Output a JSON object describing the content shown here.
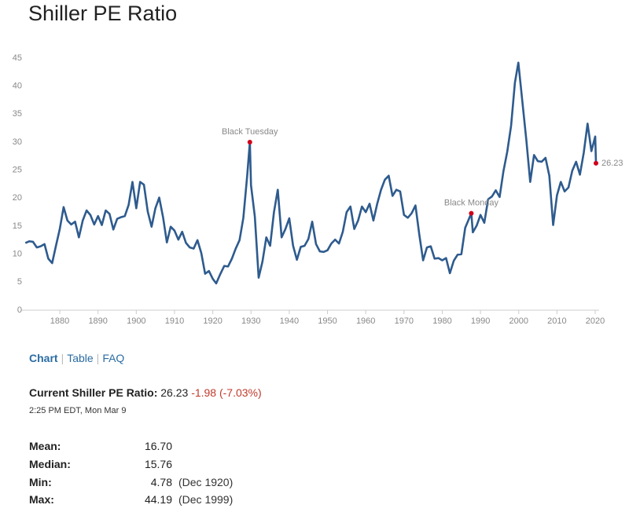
{
  "page": {
    "title": "Shiller PE Ratio",
    "tabs": [
      "Chart",
      "Table",
      "FAQ"
    ],
    "current": {
      "label": "Current Shiller PE Ratio:",
      "value": "26.23",
      "change": "-1.98 (-7.03%)",
      "time": "2:25 PM EDT, Mon Mar 9"
    },
    "stats": [
      {
        "label": "Mean:",
        "value": "16.70"
      },
      {
        "label": "Median:",
        "value": "15.76"
      },
      {
        "label": "Min:",
        "value": "4.78",
        "date": "(Dec 1920)"
      },
      {
        "label": "Max:",
        "value": "44.19",
        "date": "(Dec 1999)"
      }
    ]
  },
  "chart_data": {
    "type": "line",
    "color": "#2e5b8e",
    "x": [
      1871,
      1872,
      1873,
      1874,
      1875,
      1876,
      1877,
      1878,
      1879,
      1880,
      1881,
      1882,
      1883,
      1884,
      1885,
      1886,
      1887,
      1888,
      1889,
      1890,
      1891,
      1892,
      1893,
      1894,
      1895,
      1896,
      1897,
      1898,
      1899,
      1900,
      1901,
      1902,
      1903,
      1904,
      1905,
      1906,
      1907,
      1908,
      1909,
      1910,
      1911,
      1912,
      1913,
      1914,
      1915,
      1916,
      1917,
      1918,
      1919,
      1920,
      1920.9,
      1922,
      1923,
      1924,
      1925,
      1926,
      1927,
      1928,
      1929,
      1929.7,
      1930,
      1931,
      1932,
      1933,
      1934,
      1935,
      1936,
      1937,
      1938,
      1939,
      1940,
      1941,
      1942,
      1943,
      1944,
      1945,
      1946,
      1947,
      1948,
      1949,
      1950,
      1951,
      1952,
      1953,
      1954,
      1955,
      1956,
      1957,
      1958,
      1959,
      1960,
      1961,
      1962,
      1963,
      1964,
      1965,
      1966,
      1967,
      1968,
      1969,
      1970,
      1971,
      1972,
      1973,
      1974,
      1975,
      1976,
      1977,
      1978,
      1979,
      1980,
      1981,
      1982,
      1983,
      1984,
      1985,
      1986,
      1987.6,
      1988,
      1989,
      1990,
      1991,
      1992,
      1993,
      1994,
      1995,
      1996,
      1997,
      1998,
      1999,
      1999.9,
      2001,
      2002,
      2003,
      2004,
      2005,
      2006,
      2007,
      2008,
      2009,
      2010,
      2011,
      2012,
      2013,
      2014,
      2015,
      2016,
      2017,
      2018,
      2019,
      2020,
      2020.2
    ],
    "values": [
      12.0,
      12.3,
      12.2,
      11.2,
      11.4,
      11.8,
      9.2,
      8.4,
      11.5,
      14.5,
      18.4,
      16.0,
      15.3,
      15.8,
      13.0,
      16.0,
      17.8,
      17.0,
      15.3,
      16.8,
      15.2,
      17.8,
      17.2,
      14.4,
      16.3,
      16.6,
      16.8,
      18.8,
      22.9,
      18.2,
      22.9,
      22.4,
      17.6,
      14.9,
      18.2,
      20.1,
      16.6,
      12.1,
      14.9,
      14.2,
      12.6,
      14.0,
      12.0,
      11.2,
      11.0,
      12.5,
      10.2,
      6.5,
      7.0,
      5.6,
      4.78,
      6.5,
      7.9,
      7.8,
      9.2,
      11.0,
      12.5,
      16.5,
      24.0,
      30.0,
      22.3,
      16.7,
      5.8,
      8.7,
      13.0,
      11.5,
      17.5,
      21.5,
      13.0,
      14.5,
      16.4,
      11.5,
      9.0,
      11.3,
      11.5,
      12.7,
      15.8,
      11.8,
      10.5,
      10.4,
      10.7,
      11.9,
      12.6,
      11.9,
      14.0,
      17.5,
      18.5,
      14.5,
      16.0,
      18.5,
      17.5,
      19.0,
      16.0,
      19.0,
      21.5,
      23.3,
      24.0,
      20.4,
      21.5,
      21.2,
      17.0,
      16.5,
      17.3,
      18.7,
      13.5,
      8.9,
      11.2,
      11.4,
      9.2,
      9.3,
      8.9,
      9.3,
      6.6,
      8.8,
      9.9,
      10.0,
      14.7,
      17.3,
      13.9,
      15.1,
      17.0,
      15.6,
      19.8,
      20.3,
      21.4,
      20.2,
      24.8,
      28.3,
      32.9,
      40.6,
      44.19,
      36.9,
      30.3,
      22.9,
      27.7,
      26.6,
      26.5,
      27.2,
      24.0,
      15.2,
      20.5,
      22.9,
      21.2,
      21.9,
      24.9,
      26.5,
      24.2,
      28.1,
      33.3,
      28.4,
      31.0,
      26.23
    ],
    "xlim": [
      1870,
      2021
    ],
    "xticks": [
      1880,
      1890,
      1900,
      1910,
      1920,
      1930,
      1940,
      1950,
      1960,
      1970,
      1980,
      1990,
      2000,
      2010,
      2020
    ],
    "ylim": [
      0,
      45
    ],
    "yticks": [
      0,
      5,
      10,
      15,
      20,
      25,
      30,
      35,
      40,
      45
    ],
    "grid": false,
    "annotations": [
      {
        "label": "Black Tuesday",
        "x": 1929.7,
        "y": 30.0,
        "color": "#d0021b"
      },
      {
        "label": "Black Monday",
        "x": 1987.6,
        "y": 17.3,
        "color": "#d0021b"
      },
      {
        "label": "26.23",
        "x": 2020.2,
        "y": 26.23,
        "color": "#d0021b"
      }
    ]
  }
}
